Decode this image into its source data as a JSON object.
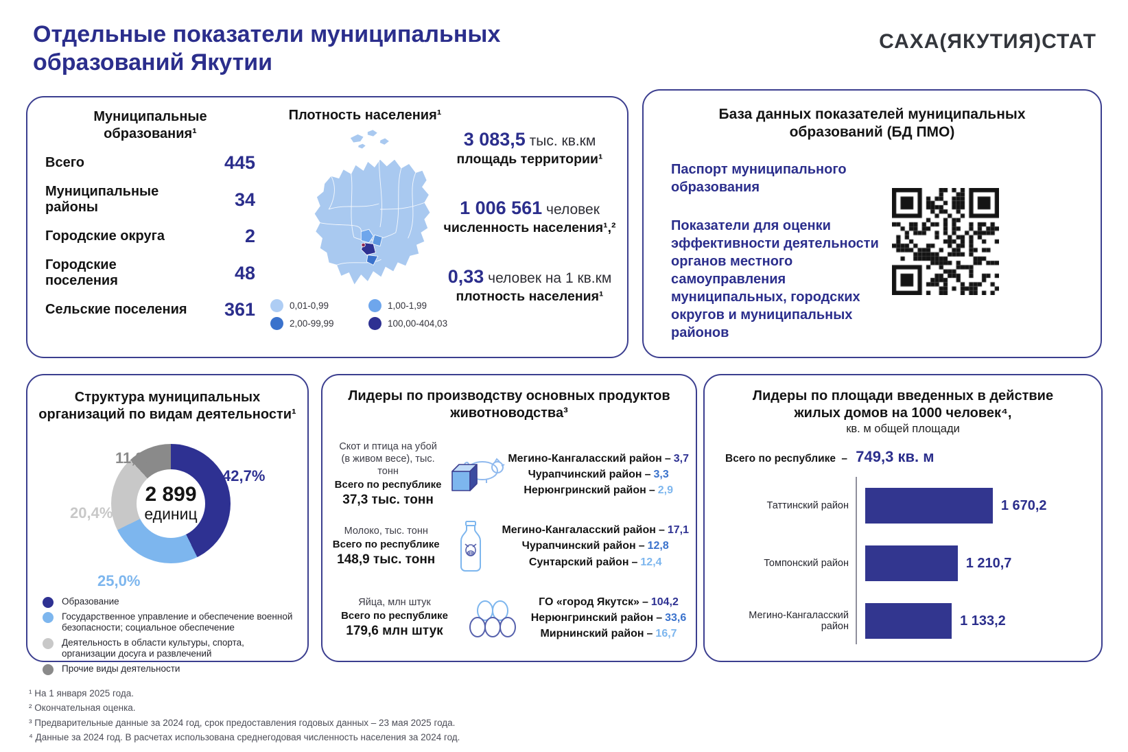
{
  "header": {
    "title_line1": "Отдельные показатели муниципальных",
    "title_line2": "образований Якутии",
    "logo": "САХА(ЯКУТИЯ)СТАТ"
  },
  "municipal": {
    "title": "Муниципальные образования¹",
    "rows": [
      {
        "label": "Всего",
        "value": "445"
      },
      {
        "label": "Муниципальные районы",
        "value": "34"
      },
      {
        "label": "Городские округа",
        "value": "2"
      },
      {
        "label": "Городские поселения",
        "value": "48"
      },
      {
        "label": "Сельские поселения",
        "value": "361"
      }
    ]
  },
  "density": {
    "title": "Плотность населения¹",
    "legend": [
      {
        "label": "0,01-0,99",
        "color": "#aecdf4"
      },
      {
        "label": "1,00-1,99",
        "color": "#6ea6ec"
      },
      {
        "label": "2,00-99,99",
        "color": "#3a72cc"
      },
      {
        "label": "100,00-404,03",
        "color": "#2e3192"
      }
    ],
    "stats": [
      {
        "value": "3 083,5",
        "unit": "тыс. кв.км",
        "label": "площадь территории¹"
      },
      {
        "value": "1 006 561",
        "unit": "человек",
        "label": "численность населения¹,²"
      },
      {
        "value": "0,33",
        "unit": "человек на 1 кв.км",
        "label": "плотность населения¹"
      }
    ]
  },
  "database": {
    "title_line1": "База данных показателей муниципальных",
    "title_line2": "образований (БД ПМО)",
    "item1": "Паспорт муниципального образования",
    "item2": "Показатели для оценки эффективности деятельности органов местного самоуправления муниципальных, городских округов и муниципальных районов",
    "qr": "qr-code"
  },
  "livestock": {
    "title_line1": "Лидеры по производству основных продуктов",
    "title_line2": "животноводства³",
    "joiner": "–",
    "value_colors": [
      "#2e3192",
      "#3a72cc",
      "#7db6ee"
    ],
    "rows": [
      {
        "product_line1": "Скот и птица на убой",
        "product_line2": "(в живом весе), тыс. тонн",
        "total_label": "Всего по республике",
        "total_value": "37,3 тыс. тонн",
        "icon": "meat-cube-pig-icon",
        "leaders": [
          {
            "name": "Мегино-Кангаласский район",
            "value": "3,7"
          },
          {
            "name": "Чурапчинский район",
            "value": "3,3"
          },
          {
            "name": "Нерюнгринский район",
            "value": "2,9"
          }
        ]
      },
      {
        "product_line1": "Молоко, тыс. тонн",
        "product_line2": "",
        "total_label": "Всего по республике",
        "total_value": "148,9 тыс. тонн",
        "icon": "milk-bottle-icon",
        "leaders": [
          {
            "name": "Мегино-Кангаласский район",
            "value": "17,1"
          },
          {
            "name": "Чурапчинский район",
            "value": "12,8"
          },
          {
            "name": "Сунтарский район",
            "value": "12,4"
          }
        ]
      },
      {
        "product_line1": "Яйца, млн штук",
        "product_line2": "",
        "total_label": "Всего по республике",
        "total_value": "179,6 млн штук",
        "icon": "eggs-icon",
        "leaders": [
          {
            "name": "ГО «город Якутск»",
            "value": "104,2"
          },
          {
            "name": "Нерюнгринский район",
            "value": "33,6"
          },
          {
            "name": "Мирнинский район",
            "value": "16,7"
          }
        ]
      }
    ]
  },
  "chart_data": [
    {
      "type": "pie",
      "title": "Структура муниципальных организаций по видам деятельности¹",
      "title_line1": "Структура муниципальных",
      "title_line2": "организаций по видам деятельности¹",
      "center_value": "2 899",
      "center_unit": "единиц",
      "legend_position": "bottom",
      "slices": [
        {
          "label": "Образование",
          "value": 42.7,
          "value_label": "42,7%",
          "color": "#2e3192"
        },
        {
          "label": "Государственное управление и обеспечение военной безопасности; социальное обеспечение",
          "value": 25.0,
          "value_label": "25,0%",
          "color": "#7db6ee"
        },
        {
          "label": "Деятельность в области культуры, спорта, организации досуга и развлечений",
          "value": 20.4,
          "value_label": "20,4%",
          "color": "#c8c8c8"
        },
        {
          "label": "Прочие виды деятельности",
          "value": 11.8,
          "value_label": "11,8%",
          "color": "#8a8a8a"
        }
      ]
    },
    {
      "type": "bar",
      "orientation": "horizontal",
      "title": "Лидеры по площади введенных в действие жилых домов на 1000 человек⁴, кв. м общей площади",
      "title_line1": "Лидеры по площади введенных в действие",
      "title_line2": "жилых домов на 1000 человек⁴,",
      "title_line3": "кв. м общей площади",
      "total_label": "Всего по республике",
      "total_joiner": "–",
      "total_value": "749,3 кв. м",
      "categories": [
        "Таттинский район",
        "Томпонский район",
        "Мегино-Кангаласский район"
      ],
      "values": [
        1670.2,
        1210.7,
        1133.2
      ],
      "value_labels": [
        "1 670,2",
        "1 210,7",
        "1 133,2"
      ],
      "bar_color": "#32368f",
      "xlim": [
        0,
        1800
      ],
      "grid": false
    }
  ],
  "footnotes": [
    "¹ На 1 января 2025 года.",
    "² Окончательная оценка.",
    "³ Предварительные данные за 2024 год, срок предоставления годовых данных – 23 мая 2025 года.",
    "⁴ Данные за 2024 год. В расчетах использована среднегодовая численность населения за 2024 год."
  ]
}
